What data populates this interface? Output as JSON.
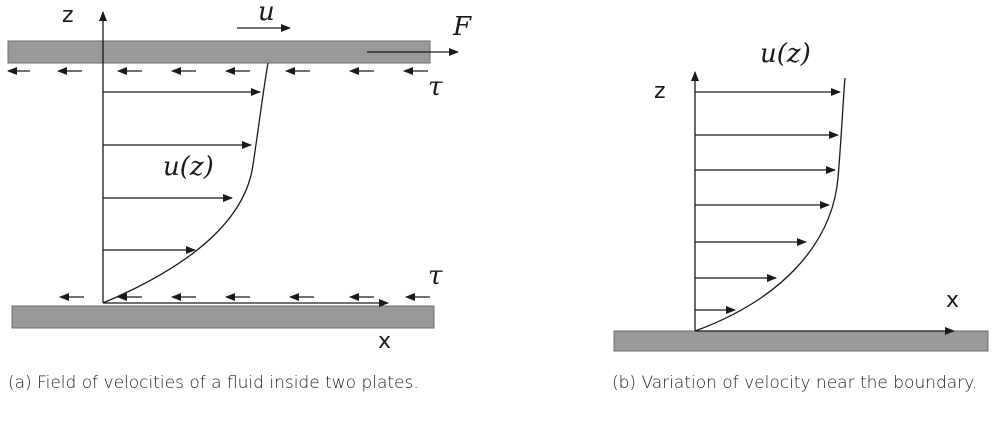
{
  "panel_a": {
    "axis_z": "z",
    "axis_x": "x",
    "plate_velocity": "u",
    "force": "F",
    "shear_top": "τ",
    "shear_bottom": "τ",
    "profile": "u(z)",
    "caption": "(a) Field of velocities of a fluid inside two plates."
  },
  "panel_b": {
    "axis_z": "z",
    "axis_x": "x",
    "profile": "u(z)",
    "caption": "(b) Variation of velocity near the boundary."
  },
  "colors": {
    "plate": "#999999",
    "plate_edge": "#6e6e6e",
    "ink": "#1a1a1a"
  }
}
